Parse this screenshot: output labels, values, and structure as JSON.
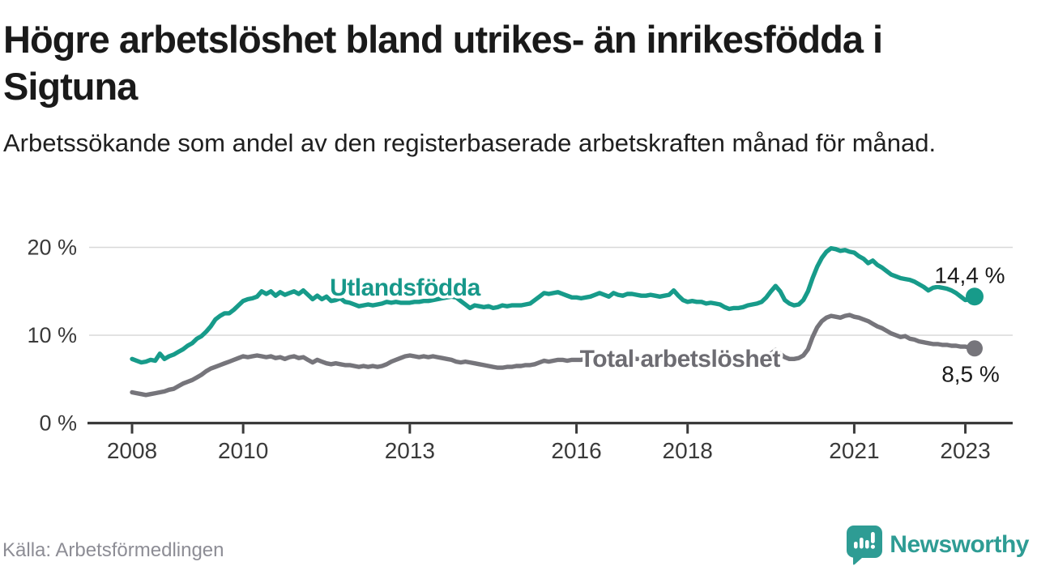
{
  "header": {
    "title_lines": [
      "Högre arbetslöshet bland utrikes- än inrikesfödda i",
      "Sigtuna"
    ],
    "subtitle": "Arbetssökande som andel av den registerbaserade arbetskraften månad för månad."
  },
  "chart_data": {
    "type": "line",
    "unit": "%",
    "x_start": "2008-01",
    "x_end": "2023-03",
    "x_interval": "monthly",
    "ylim": [
      0,
      22
    ],
    "grid": "horizontal",
    "y_ticks": [
      {
        "value": 0,
        "label": "0 %"
      },
      {
        "value": 10,
        "label": "10 %"
      },
      {
        "value": 20,
        "label": "20 %"
      }
    ],
    "x_ticks": [
      {
        "year": 2008,
        "label": "2008"
      },
      {
        "year": 2010,
        "label": "2010"
      },
      {
        "year": 2013,
        "label": "2013"
      },
      {
        "year": 2016,
        "label": "2016"
      },
      {
        "year": 2018,
        "label": "2018"
      },
      {
        "year": 2021,
        "label": "2021"
      },
      {
        "year": 2023,
        "label": "2023"
      }
    ],
    "series": [
      {
        "name": "Utlandsfödda",
        "color": "#179b8a",
        "end_label": "14,4 %",
        "values": [
          7.3,
          7.1,
          6.9,
          7.0,
          7.2,
          7.1,
          7.9,
          7.3,
          7.6,
          7.8,
          8.1,
          8.4,
          8.8,
          9.1,
          9.6,
          9.9,
          10.4,
          11.0,
          11.8,
          12.2,
          12.5,
          12.5,
          12.9,
          13.4,
          13.9,
          14.1,
          14.2,
          14.4,
          15.0,
          14.7,
          15.0,
          14.5,
          14.9,
          14.6,
          14.8,
          15.0,
          14.7,
          15.1,
          14.6,
          14.1,
          14.5,
          14.1,
          14.4,
          13.9,
          14.0,
          14.2,
          13.8,
          13.7,
          13.5,
          13.3,
          13.4,
          13.5,
          13.4,
          13.5,
          13.6,
          13.8,
          13.7,
          13.8,
          13.7,
          13.7,
          13.7,
          13.8,
          13.8,
          13.9,
          13.9,
          14.0,
          14.1,
          14.2,
          14.3,
          14.4,
          14.3,
          13.9,
          13.5,
          13.1,
          13.4,
          13.3,
          13.2,
          13.3,
          13.1,
          13.2,
          13.4,
          13.3,
          13.4,
          13.4,
          13.4,
          13.5,
          13.6,
          14.0,
          14.4,
          14.8,
          14.7,
          14.8,
          14.9,
          14.7,
          14.5,
          14.3,
          14.3,
          14.2,
          14.3,
          14.4,
          14.6,
          14.8,
          14.6,
          14.4,
          14.8,
          14.6,
          14.5,
          14.7,
          14.7,
          14.6,
          14.5,
          14.5,
          14.6,
          14.5,
          14.4,
          14.5,
          14.6,
          15.1,
          14.5,
          14.0,
          13.8,
          13.9,
          13.8,
          13.8,
          13.6,
          13.7,
          13.6,
          13.5,
          13.2,
          13.0,
          13.1,
          13.1,
          13.2,
          13.4,
          13.5,
          13.6,
          13.8,
          14.3,
          15.0,
          15.6,
          15.0,
          14.0,
          13.6,
          13.4,
          13.5,
          14.0,
          15.0,
          16.5,
          17.8,
          18.8,
          19.5,
          19.9,
          19.8,
          19.6,
          19.7,
          19.5,
          19.4,
          19.0,
          18.7,
          18.2,
          18.5,
          18.0,
          17.7,
          17.3,
          16.9,
          16.7,
          16.5,
          16.4,
          16.3,
          16.1,
          15.8,
          15.5,
          15.1,
          15.4,
          15.5,
          15.4,
          15.3,
          15.1,
          14.8,
          14.4,
          14.0,
          14.1,
          14.4
        ]
      },
      {
        "name": "Total arbetslöshet",
        "color": "#76757b",
        "end_label": "8,5 %",
        "values": [
          3.5,
          3.4,
          3.3,
          3.2,
          3.3,
          3.4,
          3.5,
          3.6,
          3.8,
          3.9,
          4.2,
          4.5,
          4.7,
          4.9,
          5.2,
          5.5,
          5.9,
          6.2,
          6.4,
          6.6,
          6.8,
          7.0,
          7.2,
          7.4,
          7.6,
          7.5,
          7.6,
          7.7,
          7.6,
          7.5,
          7.6,
          7.4,
          7.5,
          7.3,
          7.5,
          7.6,
          7.4,
          7.5,
          7.2,
          6.9,
          7.2,
          7.0,
          6.8,
          6.7,
          6.8,
          6.7,
          6.6,
          6.6,
          6.5,
          6.4,
          6.5,
          6.4,
          6.5,
          6.4,
          6.5,
          6.7,
          7.0,
          7.2,
          7.4,
          7.6,
          7.7,
          7.6,
          7.5,
          7.6,
          7.5,
          7.6,
          7.5,
          7.4,
          7.3,
          7.2,
          7.0,
          6.9,
          7.0,
          6.9,
          6.8,
          6.7,
          6.6,
          6.5,
          6.4,
          6.3,
          6.3,
          6.4,
          6.4,
          6.5,
          6.5,
          6.6,
          6.6,
          6.7,
          6.9,
          7.1,
          7.0,
          7.1,
          7.2,
          7.2,
          7.1,
          7.2,
          7.2,
          7.2,
          7.3,
          7.3,
          7.4,
          7.4,
          7.3,
          7.3,
          7.4,
          7.4,
          7.3,
          7.4,
          7.4,
          7.3,
          7.3,
          7.2,
          7.3,
          7.2,
          7.2,
          7.3,
          7.3,
          7.5,
          7.3,
          7.1,
          7.0,
          7.0,
          6.9,
          6.9,
          6.8,
          6.9,
          6.8,
          6.8,
          6.7,
          6.6,
          6.7,
          6.7,
          6.8,
          6.9,
          7.0,
          7.0,
          7.1,
          7.4,
          7.9,
          8.3,
          7.9,
          7.5,
          7.3,
          7.3,
          7.4,
          7.7,
          8.4,
          9.8,
          10.9,
          11.6,
          12.0,
          12.2,
          12.1,
          12.0,
          12.2,
          12.3,
          12.1,
          12.0,
          11.8,
          11.6,
          11.3,
          11.0,
          10.8,
          10.5,
          10.2,
          10.0,
          9.8,
          9.9,
          9.6,
          9.5,
          9.3,
          9.2,
          9.1,
          9.0,
          9.0,
          8.9,
          8.9,
          8.8,
          8.8,
          8.7,
          8.7,
          8.6,
          8.5
        ]
      }
    ],
    "series_labels": [
      {
        "text": "Utlandsfödda",
        "year": 2011.56,
        "value": 14.5,
        "color": "#17988a"
      },
      {
        "text": "Total arbetslöshet",
        "year": 2016.06,
        "value": 6.4,
        "color": "#6d6c72"
      }
    ]
  },
  "footer": {
    "source": "Källa: Arbetsförmedlingen",
    "brand": "Newsworthy"
  },
  "colors": {
    "accent_teal": "#179b8a",
    "line_gray": "#76757b",
    "logo_teal": "#2e9c94",
    "grid": "#d8d8d8",
    "axis": "#3a3a3a",
    "text_dark": "#1a1a1a"
  }
}
